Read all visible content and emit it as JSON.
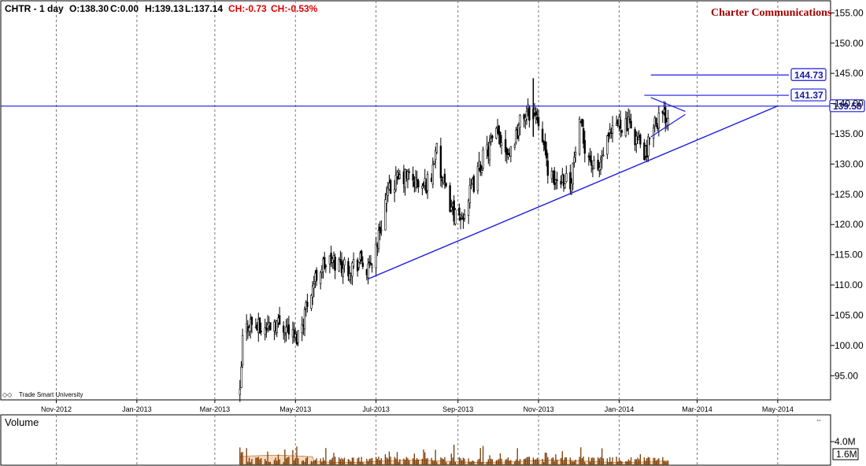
{
  "header": {
    "symbol": "CHTR - 1 day",
    "open": "O:138.30",
    "close": "C:0.00",
    "high": "H:139.13",
    "low": "L:137.14",
    "change": "CH:-0.73",
    "change_pct": "CH:-0.53%",
    "company": "Charter Communications"
  },
  "credit": "Trade Smart University",
  "volume_panel": {
    "title": "Volume",
    "tick_label": "4.0M",
    "current_label": "1.6M"
  },
  "colors": {
    "trendline": "#1a1ae0",
    "candles": "#000000",
    "volume_fill": "#f2c9a3",
    "volume_line": "#c08040",
    "negative": "#e00000",
    "company": "#a00000"
  },
  "chart_data": {
    "type": "candlestick",
    "y_axis": {
      "ylim": [
        91,
        157
      ],
      "ticks": [
        "95.00",
        "100.00",
        "105.00",
        "110.00",
        "115.00",
        "120.00",
        "125.00",
        "130.00",
        "135.00",
        "140.00",
        "145.00",
        "150.00",
        "155.00"
      ],
      "tick_values": [
        95,
        100,
        105,
        110,
        115,
        120,
        125,
        130,
        135,
        140,
        145,
        150,
        155
      ],
      "grid": false
    },
    "x_axis": {
      "labels": [
        "Nov-2012",
        "Jan-2013",
        "Mar-2013",
        "May-2013",
        "Jul-2013",
        "Sep-2013",
        "Nov-2013",
        "Jan-2014",
        "Mar-2014",
        "May-2014"
      ],
      "label_dates": [
        "2012-11-01",
        "2013-01-01",
        "2013-03-01",
        "2013-05-01",
        "2013-07-01",
        "2013-09-01",
        "2013-11-01",
        "2014-01-01",
        "2014-03-01",
        "2014-05-01"
      ],
      "range": [
        "2012-09-20",
        "2014-06-10"
      ],
      "grid": "vertical dashed"
    },
    "price_path": [
      {
        "date": "2013-03-20",
        "price": 91.5
      },
      {
        "date": "2013-03-22",
        "price": 101
      },
      {
        "date": "2013-03-27",
        "price": 104
      },
      {
        "date": "2013-04-05",
        "price": 102.5
      },
      {
        "date": "2013-04-15",
        "price": 104
      },
      {
        "date": "2013-04-25",
        "price": 103
      },
      {
        "date": "2013-05-01",
        "price": 101
      },
      {
        "date": "2013-05-05",
        "price": 103
      },
      {
        "date": "2013-05-12",
        "price": 109
      },
      {
        "date": "2013-05-20",
        "price": 113
      },
      {
        "date": "2013-05-28",
        "price": 114
      },
      {
        "date": "2013-06-10",
        "price": 113
      },
      {
        "date": "2013-06-20",
        "price": 114
      },
      {
        "date": "2013-06-25",
        "price": 112
      },
      {
        "date": "2013-07-03",
        "price": 118
      },
      {
        "date": "2013-07-08",
        "price": 124
      },
      {
        "date": "2013-07-15",
        "price": 127
      },
      {
        "date": "2013-07-25",
        "price": 128
      },
      {
        "date": "2013-08-05",
        "price": 126
      },
      {
        "date": "2013-08-12",
        "price": 128
      },
      {
        "date": "2013-08-15",
        "price": 133
      },
      {
        "date": "2013-08-20",
        "price": 127
      },
      {
        "date": "2013-08-25",
        "price": 124
      },
      {
        "date": "2013-09-02",
        "price": 120
      },
      {
        "date": "2013-09-10",
        "price": 125
      },
      {
        "date": "2013-09-20",
        "price": 131
      },
      {
        "date": "2013-10-01",
        "price": 135
      },
      {
        "date": "2013-10-10",
        "price": 132
      },
      {
        "date": "2013-10-20",
        "price": 138
      },
      {
        "date": "2013-10-28",
        "price": 139
      },
      {
        "date": "2013-11-03",
        "price": 137
      },
      {
        "date": "2013-11-06",
        "price": 131
      },
      {
        "date": "2013-11-12",
        "price": 127
      },
      {
        "date": "2013-11-20",
        "price": 128
      },
      {
        "date": "2013-11-25",
        "price": 127
      },
      {
        "date": "2013-12-02",
        "price": 136
      },
      {
        "date": "2013-12-08",
        "price": 132
      },
      {
        "date": "2013-12-15",
        "price": 128
      },
      {
        "date": "2013-12-22",
        "price": 133
      },
      {
        "date": "2014-01-01",
        "price": 137
      },
      {
        "date": "2014-01-10",
        "price": 136
      },
      {
        "date": "2014-01-17",
        "price": 133
      },
      {
        "date": "2014-01-22",
        "price": 131
      },
      {
        "date": "2014-01-25",
        "price": 137
      },
      {
        "date": "2014-02-05",
        "price": 138
      },
      {
        "date": "2014-02-10",
        "price": 138.3
      }
    ],
    "annotations": {
      "support_trendline": {
        "from": {
          "date": "2013-06-25",
          "price": 111
        },
        "to": {
          "date": "2014-05-01",
          "price": 139.6
        }
      },
      "resistance_line": {
        "price": 139.58,
        "label": "139.58"
      },
      "target_lines": [
        {
          "price": 144.73,
          "label": "144.73",
          "from_date": "2014-01-25"
        },
        {
          "price": 141.37,
          "label": "141.37",
          "from_date": "2014-01-20"
        }
      ],
      "pennant": {
        "upper": [
          {
            "date": "2014-01-25",
            "price": 141
          },
          {
            "date": "2014-02-20",
            "price": 138.7
          }
        ],
        "lower": [
          {
            "date": "2014-01-25",
            "price": 134.5
          },
          {
            "date": "2014-02-20",
            "price": 138.2
          }
        ]
      },
      "spike": {
        "date": "2013-10-28",
        "high": 144.2,
        "low": 134.5
      }
    }
  }
}
